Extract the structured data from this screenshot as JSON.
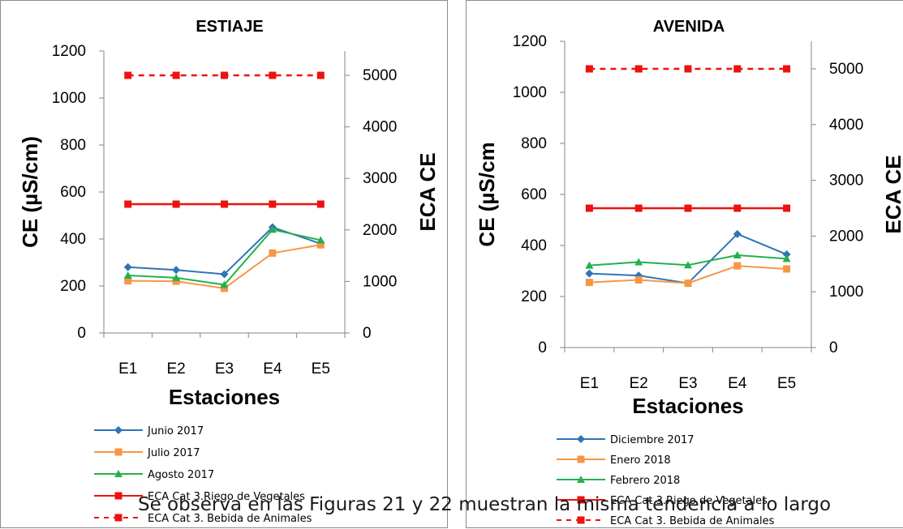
{
  "chart_data": [
    {
      "type": "line",
      "title": "ESTIAJE",
      "xlabel": "Estaciones",
      "ylabel": "CE  (µS/cm)",
      "y2label": "ECA  CE",
      "categories": [
        "E1",
        "E2",
        "E3",
        "E4",
        "E5"
      ],
      "ylim": [
        0,
        1200
      ],
      "yticks": [
        0,
        200,
        400,
        600,
        800,
        1000,
        1200
      ],
      "y2lim": [
        0,
        5500
      ],
      "y2ticks": [
        0,
        1000,
        2000,
        3000,
        4000,
        5000
      ],
      "legend_position": "bottom-left",
      "series": [
        {
          "name": "Junio 2017",
          "axis": "left",
          "color": "#2e75b6",
          "marker": "diamond",
          "values": [
            280,
            268,
            250,
            450,
            380
          ]
        },
        {
          "name": "Julio 2017",
          "axis": "left",
          "color": "#f79646",
          "marker": "square",
          "values": [
            222,
            220,
            190,
            340,
            375
          ]
        },
        {
          "name": "Agosto 2017",
          "axis": "left",
          "color": "#22b14c",
          "marker": "triangle",
          "values": [
            245,
            235,
            205,
            440,
            395
          ]
        },
        {
          "name": "ECA Cat 3.Riego de Vegetales",
          "axis": "right",
          "color": "#ee1111",
          "marker": "square",
          "values": [
            2500,
            2500,
            2500,
            2500,
            2500
          ]
        },
        {
          "name": "ECA Cat 3. Bebida de Animales",
          "axis": "right",
          "color": "#ee1111",
          "marker": "square",
          "dashed": true,
          "values": [
            5000,
            5000,
            5000,
            5000,
            5000
          ]
        }
      ]
    },
    {
      "type": "line",
      "title": "AVENIDA",
      "xlabel": "Estaciones",
      "ylabel": "CE (µS/cm",
      "y2label": "ECA  CE",
      "categories": [
        "E1",
        "E2",
        "E3",
        "E4",
        "E5"
      ],
      "ylim": [
        0,
        1200
      ],
      "yticks": [
        0,
        200,
        400,
        600,
        800,
        1000,
        1200
      ],
      "y2lim": [
        0,
        5500
      ],
      "y2ticks": [
        0,
        1000,
        2000,
        3000,
        4000,
        5000
      ],
      "legend_position": "bottom-left",
      "series": [
        {
          "name": "Diciembre 2017",
          "axis": "left",
          "color": "#2e75b6",
          "marker": "diamond",
          "values": [
            290,
            282,
            252,
            445,
            365
          ]
        },
        {
          "name": "Enero 2018",
          "axis": "left",
          "color": "#f79646",
          "marker": "square",
          "values": [
            255,
            265,
            252,
            320,
            308
          ]
        },
        {
          "name": "Febrero 2018",
          "axis": "left",
          "color": "#22b14c",
          "marker": "triangle",
          "values": [
            322,
            335,
            323,
            362,
            348
          ]
        },
        {
          "name": "ECA Cat 3.Riego de Vegetales",
          "axis": "right",
          "color": "#ee1111",
          "marker": "square",
          "values": [
            2500,
            2500,
            2500,
            2500,
            2500
          ]
        },
        {
          "name": "ECA Cat 3. Bebida de Animales",
          "axis": "right",
          "color": "#ee1111",
          "marker": "square",
          "dashed": true,
          "values": [
            5000,
            5000,
            5000,
            5000,
            5000
          ]
        }
      ]
    }
  ],
  "caption": "Se observa en las Figuras 21 y 22 muestran la misma tendencia a lo largo"
}
